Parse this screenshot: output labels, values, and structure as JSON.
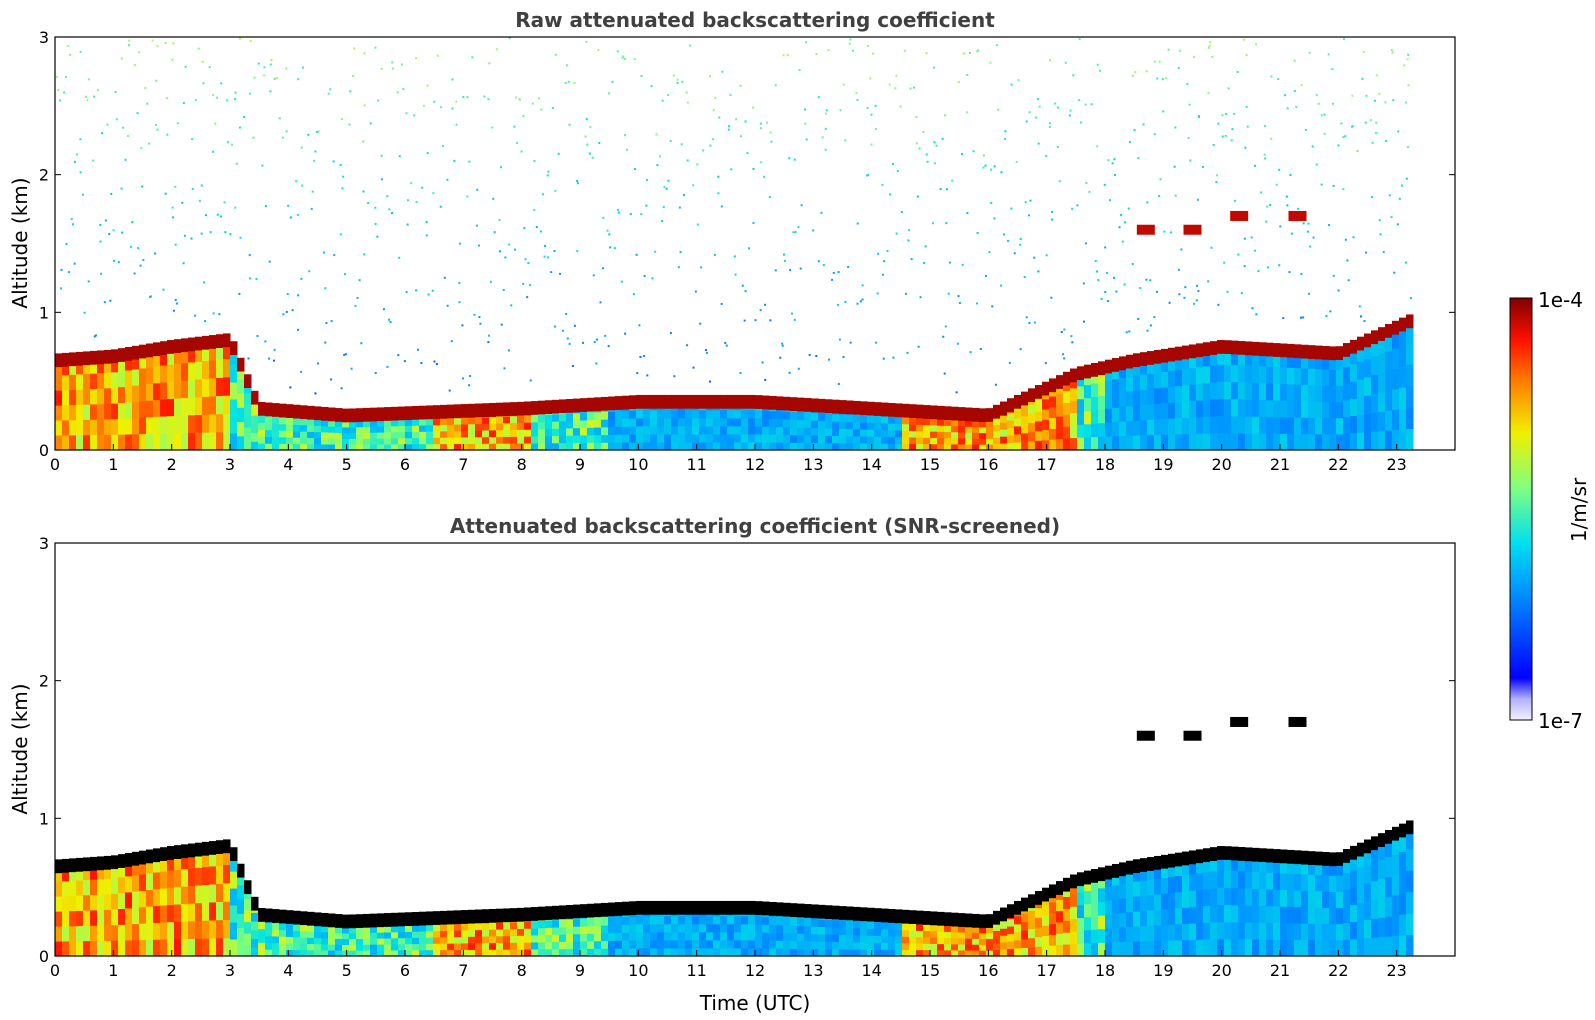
{
  "chart_data": [
    {
      "type": "heatmap",
      "title": "Raw attenuated backscattering coefficient",
      "xlabel": "",
      "ylabel": "Altitude (km)",
      "xlim": [
        0,
        24
      ],
      "ylim": [
        0,
        3
      ],
      "xticks": [
        "0",
        "1",
        "2",
        "3",
        "4",
        "5",
        "6",
        "7",
        "8",
        "9",
        "10",
        "11",
        "12",
        "13",
        "14",
        "15",
        "16",
        "17",
        "18",
        "19",
        "20",
        "21",
        "22",
        "23"
      ],
      "yticks": [
        "0",
        "1",
        "2",
        "3"
      ],
      "data_end_time": 23.3,
      "features": {
        "boundary_layer_top_km": [
          {
            "t": 0,
            "h": 0.65
          },
          {
            "t": 1,
            "h": 0.68
          },
          {
            "t": 2,
            "h": 0.75
          },
          {
            "t": 3,
            "h": 0.8
          },
          {
            "t": 3.5,
            "h": 0.3
          },
          {
            "t": 5,
            "h": 0.25
          },
          {
            "t": 8,
            "h": 0.3
          },
          {
            "t": 10,
            "h": 0.35
          },
          {
            "t": 12,
            "h": 0.35
          },
          {
            "t": 14,
            "h": 0.3
          },
          {
            "t": 16,
            "h": 0.25
          },
          {
            "t": 17.5,
            "h": 0.55
          },
          {
            "t": 18.5,
            "h": 0.65
          },
          {
            "t": 20,
            "h": 0.75
          },
          {
            "t": 22,
            "h": 0.7
          },
          {
            "t": 23.3,
            "h": 0.95
          }
        ],
        "cloud_layer_km": [
          {
            "t": 18.7,
            "h": 1.6
          },
          {
            "t": 19.5,
            "h": 1.6
          },
          {
            "t": 20.3,
            "h": 1.7
          },
          {
            "t": 21.3,
            "h": 1.7
          }
        ]
      }
    },
    {
      "type": "heatmap",
      "title": "Attenuated backscattering coefficient (SNR-screened)",
      "xlabel": "Time (UTC)",
      "ylabel": "Altitude (km)",
      "xlim": [
        0,
        24
      ],
      "ylim": [
        0,
        3
      ],
      "xticks": [
        "0",
        "1",
        "2",
        "3",
        "4",
        "5",
        "6",
        "7",
        "8",
        "9",
        "10",
        "11",
        "12",
        "13",
        "14",
        "15",
        "16",
        "17",
        "18",
        "19",
        "20",
        "21",
        "22",
        "23"
      ],
      "yticks": [
        "0",
        "1",
        "2",
        "3"
      ],
      "data_end_time": 23.3
    }
  ],
  "colorbar": {
    "label": "1/m/sr",
    "max_label": "1e-4",
    "min_label": "1e-7",
    "colormap": [
      "#ffffff",
      "#0000ff",
      "#00c8ff",
      "#7fff7f",
      "#ffd700",
      "#ff4500",
      "#8b0000"
    ]
  }
}
